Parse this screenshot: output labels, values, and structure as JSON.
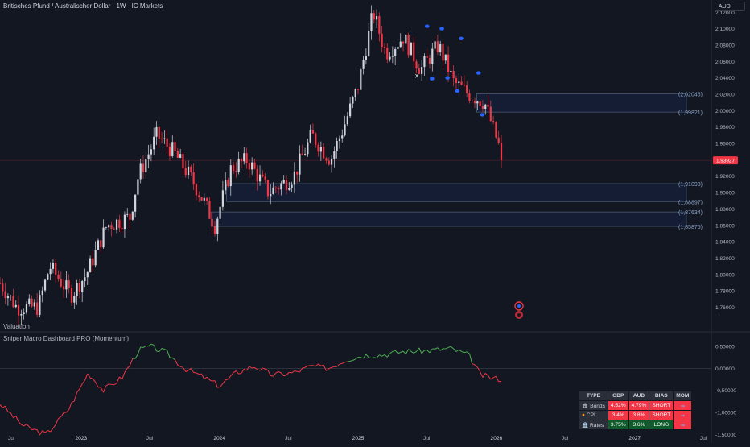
{
  "header": {
    "title": "Britisches Pfund / Australischer Dollar · 1W · IC Markets",
    "currency": "AUD",
    "price_badge": "1,93927",
    "valuation_label": "Valuation",
    "indicator_label": "Sniper Macro Dashboard PRO (Momentum)"
  },
  "colors": {
    "background": "#131722",
    "bull": "#d1d4dc",
    "bear": "#f23645",
    "zone": "#8ba3c7",
    "momentum_up": "#4caf50",
    "momentum_down": "#f23645",
    "pivot": "#2962ff"
  },
  "chart_data": [
    {
      "type": "candlestick",
      "title": "Britisches Pfund / Australischer Dollar · 1W · IC Markets",
      "ylim": [
        1.732,
        2.135
      ],
      "yticks": [
        "2,12000",
        "2,10000",
        "2,08000",
        "2,06000",
        "2,04000",
        "2,02000",
        "2,00000",
        "1,98000",
        "1,96000",
        "1,94000",
        "1,92000",
        "1,90000",
        "1,88000",
        "1,86000",
        "1,84000",
        "1,82000",
        "1,80000",
        "1,78000",
        "1,76000"
      ],
      "xticks": [
        "Jul",
        "2023",
        "Jul",
        "2024",
        "Jul",
        "2025",
        "Jul",
        "2026",
        "Jul",
        "2027",
        "Jul"
      ],
      "last_price": 1.93927,
      "zones": [
        {
          "top": 2.02046,
          "bottom": 1.99821,
          "top_label": "(2,02046)",
          "bottom_label": "(1,99821)"
        },
        {
          "top": 1.91093,
          "bottom": 1.88897,
          "top_label": "(1,91093)",
          "bottom_label": "(1,88897)"
        },
        {
          "top": 1.87634,
          "bottom": 1.85875,
          "top_label": "(1,87634)",
          "bottom_label": "(1,85875)"
        }
      ],
      "anchors": [
        {
          "date": "2022-06-01",
          "close": 1.79
        },
        {
          "date": "2022-07-15",
          "close": 1.76
        },
        {
          "date": "2022-09-10",
          "close": 1.76
        },
        {
          "date": "2022-10-10",
          "close": 1.81
        },
        {
          "date": "2022-12-05",
          "close": 1.775
        },
        {
          "date": "2023-01-15",
          "close": 1.8
        },
        {
          "date": "2023-03-10",
          "close": 1.86
        },
        {
          "date": "2023-05-10",
          "close": 1.87
        },
        {
          "date": "2023-06-01",
          "close": 1.92
        },
        {
          "date": "2023-07-20",
          "close": 1.97
        },
        {
          "date": "2023-09-01",
          "close": 1.95
        },
        {
          "date": "2023-10-15",
          "close": 1.92
        },
        {
          "date": "2023-11-20",
          "close": 1.89
        },
        {
          "date": "2023-12-20",
          "close": 1.86
        },
        {
          "date": "2024-02-01",
          "close": 1.93
        },
        {
          "date": "2024-03-15",
          "close": 1.94
        },
        {
          "date": "2024-05-10",
          "close": 1.9
        },
        {
          "date": "2024-07-15",
          "close": 1.92
        },
        {
          "date": "2024-09-01",
          "close": 1.97
        },
        {
          "date": "2024-10-20",
          "close": 1.94
        },
        {
          "date": "2024-11-20",
          "close": 1.975
        },
        {
          "date": "2025-01-01",
          "close": 2.03
        },
        {
          "date": "2025-02-10",
          "close": 2.12
        },
        {
          "date": "2025-03-15",
          "close": 2.07
        },
        {
          "date": "2025-05-01",
          "close": 2.09
        },
        {
          "date": "2025-06-15",
          "close": 2.05
        },
        {
          "date": "2025-08-01",
          "close": 2.08
        },
        {
          "date": "2025-09-10",
          "close": 2.035
        },
        {
          "date": "2025-10-20",
          "close": 2.02
        },
        {
          "date": "2025-12-01",
          "close": 2.01
        },
        {
          "date": "2026-01-20",
          "close": 1.93927
        }
      ],
      "pivots": [
        {
          "date": "2025-07-02",
          "price": 2.103,
          "kind": "high"
        },
        {
          "date": "2025-08-10",
          "price": 2.1,
          "kind": "high"
        },
        {
          "date": "2025-09-30",
          "price": 2.088,
          "kind": "high"
        },
        {
          "date": "2025-11-15",
          "price": 2.046,
          "kind": "high"
        },
        {
          "date": "2025-07-15",
          "price": 2.039,
          "kind": "low"
        },
        {
          "date": "2025-08-25",
          "price": 2.04,
          "kind": "low"
        },
        {
          "date": "2025-09-20",
          "price": 2.024,
          "kind": "low"
        },
        {
          "date": "2025-11-25",
          "price": 1.995,
          "kind": "low"
        }
      ],
      "marker_x": {
        "date": "2025-06-05",
        "price": 2.042,
        "text": "x"
      }
    },
    {
      "type": "line",
      "title": "Sniper Macro Dashboard PRO (Momentum)",
      "ylim": [
        -1.62,
        0.68
      ],
      "yticks": [
        "0,50000",
        "0,00000",
        "-0,50000",
        "-1,00000",
        "-1,50000"
      ],
      "anchors": [
        {
          "date": "2022-06-01",
          "value": -0.8
        },
        {
          "date": "2022-08-01",
          "value": -1.3
        },
        {
          "date": "2022-10-01",
          "value": -1.5
        },
        {
          "date": "2022-12-01",
          "value": -0.9
        },
        {
          "date": "2023-01-20",
          "value": -0.1
        },
        {
          "date": "2023-03-01",
          "value": -0.5
        },
        {
          "date": "2023-04-20",
          "value": -0.2
        },
        {
          "date": "2023-06-01",
          "value": 0.4
        },
        {
          "date": "2023-07-01",
          "value": 0.5
        },
        {
          "date": "2023-08-15",
          "value": 0.35
        },
        {
          "date": "2023-10-01",
          "value": 0.0
        },
        {
          "date": "2023-11-20",
          "value": -0.2
        },
        {
          "date": "2024-01-01",
          "value": -0.4
        },
        {
          "date": "2024-02-15",
          "value": -0.1
        },
        {
          "date": "2024-04-01",
          "value": 0.05
        },
        {
          "date": "2024-05-20",
          "value": -0.15
        },
        {
          "date": "2024-07-15",
          "value": -0.1
        },
        {
          "date": "2024-09-01",
          "value": 0.05
        },
        {
          "date": "2024-10-15",
          "value": 0.0
        },
        {
          "date": "2024-12-01",
          "value": 0.2
        },
        {
          "date": "2025-01-20",
          "value": 0.3
        },
        {
          "date": "2025-03-01",
          "value": 0.3
        },
        {
          "date": "2025-05-01",
          "value": 0.38
        },
        {
          "date": "2025-07-01",
          "value": 0.4
        },
        {
          "date": "2025-09-01",
          "value": 0.45
        },
        {
          "date": "2025-10-20",
          "value": 0.3
        },
        {
          "date": "2025-11-20",
          "value": -0.15
        },
        {
          "date": "2025-12-20",
          "value": -0.22
        },
        {
          "date": "2026-01-20",
          "value": -0.25
        }
      ]
    }
  ],
  "dashboard": {
    "headers": [
      "TYPE",
      "GBP",
      "AUD",
      "BIAS",
      "MOM"
    ],
    "rows": [
      {
        "icon": "bond-icon",
        "type": "Bonds",
        "gbp": "4.52%",
        "aud": "4.79%",
        "bias": "SHORT",
        "mom": "⇒"
      },
      {
        "icon": "cpi-icon",
        "type": "CPI",
        "gbp": "3.4%",
        "aud": "3.8%",
        "bias": "SHORT",
        "mom": "⇒"
      },
      {
        "icon": "bank-icon",
        "type": "Rates",
        "gbp": "3.75%",
        "aud": "3.6%",
        "bias": "LONG",
        "mom": "⇒"
      }
    ]
  }
}
